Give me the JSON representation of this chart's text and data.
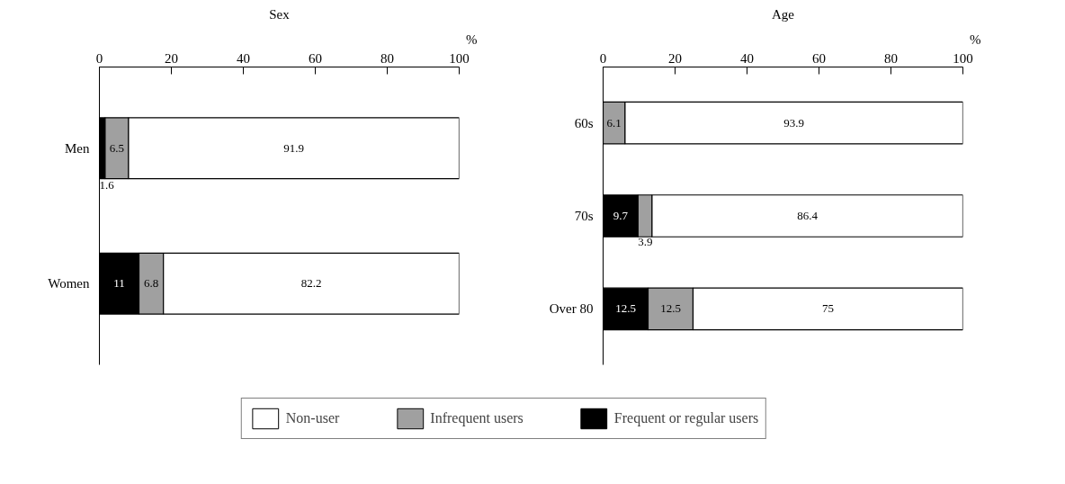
{
  "chart_data": [
    {
      "type": "bar",
      "orientation": "horizontal",
      "stacked": true,
      "title": "Sex",
      "xlabel": "%",
      "categories": [
        "Men",
        "Women"
      ],
      "xlim": [
        0,
        100
      ],
      "xticks": [
        0,
        20,
        40,
        60,
        80,
        100
      ],
      "data_labels": true,
      "legend": "bottom",
      "grid": false,
      "series": [
        {
          "name": "Frequent or regular users",
          "color": "#000000",
          "values": [
            1.6,
            11
          ]
        },
        {
          "name": "Infrequent users",
          "color": "#a0a0a0",
          "values": [
            6.5,
            6.8
          ]
        },
        {
          "name": "Non-user",
          "color": "#ffffff",
          "values": [
            91.9,
            82.2
          ]
        }
      ]
    },
    {
      "type": "bar",
      "orientation": "horizontal",
      "stacked": true,
      "title": "Age",
      "xlabel": "%",
      "categories": [
        "60s",
        "70s",
        "Over 80"
      ],
      "xlim": [
        0,
        100
      ],
      "xticks": [
        0,
        20,
        40,
        60,
        80,
        100
      ],
      "data_labels": true,
      "legend": "bottom",
      "grid": false,
      "series": [
        {
          "name": "Frequent or regular users",
          "color": "#000000",
          "values": [
            null,
            9.7,
            12.5
          ]
        },
        {
          "name": "Infrequent users",
          "color": "#a0a0a0",
          "values": [
            6.1,
            3.9,
            12.5
          ]
        },
        {
          "name": "Non-user",
          "color": "#ffffff",
          "values": [
            93.9,
            86.4,
            75
          ]
        }
      ]
    }
  ]
}
